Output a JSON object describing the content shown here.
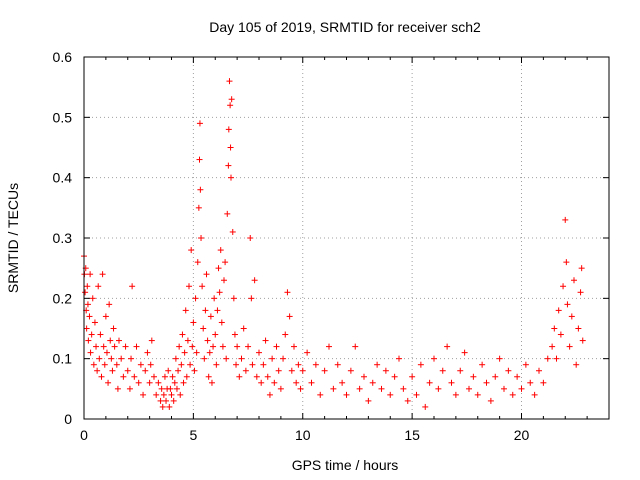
{
  "chart_data": {
    "type": "scatter",
    "title": "Day 105 of 2019, SRMTID for receiver sch2",
    "xlabel": "GPS time / hours",
    "ylabel": "SRMTID / TECUs",
    "xlim": [
      0,
      24
    ],
    "ylim": [
      0,
      0.6
    ],
    "xticks": [
      0,
      5,
      10,
      15,
      20
    ],
    "xtick_labels": [
      "0",
      "5",
      "10",
      "15",
      "20"
    ],
    "yticks": [
      0,
      0.1,
      0.2,
      0.3,
      0.4,
      0.5,
      0.6
    ],
    "ytick_labels": [
      "0",
      "0.1",
      "0.2",
      "0.3",
      "0.4",
      "0.5",
      "0.6"
    ],
    "grid": true,
    "marker": "+",
    "color": "#ff0000",
    "series": [
      {
        "name": "sch2",
        "points": [
          [
            0.0,
            0.27
          ],
          [
            0.02,
            0.24
          ],
          [
            0.05,
            0.21
          ],
          [
            0.08,
            0.25
          ],
          [
            0.1,
            0.18
          ],
          [
            0.12,
            0.15
          ],
          [
            0.15,
            0.22
          ],
          [
            0.18,
            0.19
          ],
          [
            0.2,
            0.13
          ],
          [
            0.25,
            0.17
          ],
          [
            0.28,
            0.24
          ],
          [
            0.3,
            0.11
          ],
          [
            0.35,
            0.14
          ],
          [
            0.4,
            0.2
          ],
          [
            0.45,
            0.09
          ],
          [
            0.5,
            0.16
          ],
          [
            0.55,
            0.12
          ],
          [
            0.6,
            0.08
          ],
          [
            0.65,
            0.22
          ],
          [
            0.7,
            0.1
          ],
          [
            0.75,
            0.14
          ],
          [
            0.8,
            0.07
          ],
          [
            0.85,
            0.24
          ],
          [
            0.9,
            0.12
          ],
          [
            0.95,
            0.09
          ],
          [
            1.0,
            0.17
          ],
          [
            1.05,
            0.11
          ],
          [
            1.1,
            0.06
          ],
          [
            1.15,
            0.19
          ],
          [
            1.2,
            0.13
          ],
          [
            1.25,
            0.1
          ],
          [
            1.3,
            0.08
          ],
          [
            1.35,
            0.15
          ],
          [
            1.4,
            0.12
          ],
          [
            1.5,
            0.09
          ],
          [
            1.55,
            0.05
          ],
          [
            1.6,
            0.13
          ],
          [
            1.7,
            0.1
          ],
          [
            1.8,
            0.07
          ],
          [
            1.9,
            0.12
          ],
          [
            2.0,
            0.08
          ],
          [
            2.1,
            0.05
          ],
          [
            2.15,
            0.1
          ],
          [
            2.2,
            0.22
          ],
          [
            2.3,
            0.07
          ],
          [
            2.4,
            0.12
          ],
          [
            2.5,
            0.06
          ],
          [
            2.6,
            0.09
          ],
          [
            2.7,
            0.04
          ],
          [
            2.8,
            0.08
          ],
          [
            2.9,
            0.11
          ],
          [
            3.0,
            0.06
          ],
          [
            3.05,
            0.09
          ],
          [
            3.1,
            0.13
          ],
          [
            3.2,
            0.07
          ],
          [
            3.3,
            0.04
          ],
          [
            3.4,
            0.06
          ],
          [
            3.5,
            0.03
          ],
          [
            3.55,
            0.05
          ],
          [
            3.6,
            0.02
          ],
          [
            3.65,
            0.04
          ],
          [
            3.7,
            0.07
          ],
          [
            3.75,
            0.03
          ],
          [
            3.8,
            0.05
          ],
          [
            3.85,
            0.08
          ],
          [
            3.9,
            0.02
          ],
          [
            3.95,
            0.05
          ],
          [
            4.0,
            0.04
          ],
          [
            4.05,
            0.07
          ],
          [
            4.1,
            0.03
          ],
          [
            4.15,
            0.06
          ],
          [
            4.2,
            0.1
          ],
          [
            4.25,
            0.05
          ],
          [
            4.3,
            0.08
          ],
          [
            4.35,
            0.12
          ],
          [
            4.4,
            0.04
          ],
          [
            4.45,
            0.09
          ],
          [
            4.5,
            0.14
          ],
          [
            4.55,
            0.06
          ],
          [
            4.6,
            0.11
          ],
          [
            4.65,
            0.18
          ],
          [
            4.7,
            0.07
          ],
          [
            4.75,
            0.13
          ],
          [
            4.8,
            0.22
          ],
          [
            4.85,
            0.09
          ],
          [
            4.9,
            0.28
          ],
          [
            4.95,
            0.12
          ],
          [
            5.0,
            0.16
          ],
          [
            5.05,
            0.08
          ],
          [
            5.1,
            0.2
          ],
          [
            5.15,
            0.11
          ],
          [
            5.2,
            0.26
          ],
          [
            5.25,
            0.35
          ],
          [
            5.28,
            0.43
          ],
          [
            5.3,
            0.49
          ],
          [
            5.32,
            0.38
          ],
          [
            5.35,
            0.3
          ],
          [
            5.4,
            0.22
          ],
          [
            5.45,
            0.15
          ],
          [
            5.5,
            0.1
          ],
          [
            5.55,
            0.18
          ],
          [
            5.6,
            0.24
          ],
          [
            5.65,
            0.13
          ],
          [
            5.7,
            0.07
          ],
          [
            5.75,
            0.11
          ],
          [
            5.8,
            0.17
          ],
          [
            5.85,
            0.06
          ],
          [
            5.9,
            0.12
          ],
          [
            5.95,
            0.2
          ],
          [
            6.0,
            0.14
          ],
          [
            6.05,
            0.09
          ],
          [
            6.1,
            0.18
          ],
          [
            6.15,
            0.25
          ],
          [
            6.2,
            0.21
          ],
          [
            6.25,
            0.28
          ],
          [
            6.3,
            0.16
          ],
          [
            6.35,
            0.12
          ],
          [
            6.4,
            0.23
          ],
          [
            6.45,
            0.26
          ],
          [
            6.5,
            0.1
          ],
          [
            6.55,
            0.34
          ],
          [
            6.6,
            0.42
          ],
          [
            6.62,
            0.48
          ],
          [
            6.65,
            0.56
          ],
          [
            6.68,
            0.52
          ],
          [
            6.7,
            0.45
          ],
          [
            6.72,
            0.4
          ],
          [
            6.75,
            0.53
          ],
          [
            6.8,
            0.31
          ],
          [
            6.85,
            0.2
          ],
          [
            6.9,
            0.14
          ],
          [
            6.95,
            0.09
          ],
          [
            7.0,
            0.12
          ],
          [
            7.1,
            0.07
          ],
          [
            7.2,
            0.1
          ],
          [
            7.3,
            0.15
          ],
          [
            7.4,
            0.08
          ],
          [
            7.5,
            0.12
          ],
          [
            7.6,
            0.3
          ],
          [
            7.65,
            0.2
          ],
          [
            7.7,
            0.09
          ],
          [
            7.8,
            0.23
          ],
          [
            7.9,
            0.07
          ],
          [
            8.0,
            0.11
          ],
          [
            8.1,
            0.06
          ],
          [
            8.2,
            0.09
          ],
          [
            8.3,
            0.13
          ],
          [
            8.4,
            0.07
          ],
          [
            8.5,
            0.04
          ],
          [
            8.6,
            0.1
          ],
          [
            8.7,
            0.06
          ],
          [
            8.8,
            0.12
          ],
          [
            8.9,
            0.08
          ],
          [
            9.0,
            0.05
          ],
          [
            9.1,
            0.1
          ],
          [
            9.2,
            0.14
          ],
          [
            9.3,
            0.21
          ],
          [
            9.4,
            0.17
          ],
          [
            9.5,
            0.08
          ],
          [
            9.6,
            0.12
          ],
          [
            9.7,
            0.06
          ],
          [
            9.8,
            0.09
          ],
          [
            9.9,
            0.05
          ],
          [
            10.0,
            0.08
          ],
          [
            10.2,
            0.11
          ],
          [
            10.4,
            0.06
          ],
          [
            10.6,
            0.09
          ],
          [
            10.8,
            0.04
          ],
          [
            11.0,
            0.08
          ],
          [
            11.2,
            0.12
          ],
          [
            11.4,
            0.05
          ],
          [
            11.6,
            0.09
          ],
          [
            11.8,
            0.06
          ],
          [
            12.0,
            0.04
          ],
          [
            12.2,
            0.08
          ],
          [
            12.4,
            0.12
          ],
          [
            12.6,
            0.05
          ],
          [
            12.8,
            0.07
          ],
          [
            13.0,
            0.03
          ],
          [
            13.2,
            0.06
          ],
          [
            13.4,
            0.09
          ],
          [
            13.6,
            0.05
          ],
          [
            13.8,
            0.08
          ],
          [
            14.0,
            0.04
          ],
          [
            14.2,
            0.07
          ],
          [
            14.4,
            0.1
          ],
          [
            14.6,
            0.05
          ],
          [
            14.8,
            0.03
          ],
          [
            15.0,
            0.07
          ],
          [
            15.2,
            0.04
          ],
          [
            15.4,
            0.09
          ],
          [
            15.6,
            0.02
          ],
          [
            15.8,
            0.06
          ],
          [
            16.0,
            0.1
          ],
          [
            16.2,
            0.05
          ],
          [
            16.4,
            0.08
          ],
          [
            16.6,
            0.12
          ],
          [
            16.8,
            0.06
          ],
          [
            17.0,
            0.04
          ],
          [
            17.2,
            0.08
          ],
          [
            17.4,
            0.11
          ],
          [
            17.6,
            0.05
          ],
          [
            17.8,
            0.07
          ],
          [
            18.0,
            0.04
          ],
          [
            18.2,
            0.09
          ],
          [
            18.4,
            0.06
          ],
          [
            18.6,
            0.03
          ],
          [
            18.8,
            0.07
          ],
          [
            19.0,
            0.1
          ],
          [
            19.2,
            0.05
          ],
          [
            19.4,
            0.08
          ],
          [
            19.6,
            0.04
          ],
          [
            19.8,
            0.07
          ],
          [
            20.0,
            0.05
          ],
          [
            20.2,
            0.09
          ],
          [
            20.4,
            0.06
          ],
          [
            20.6,
            0.04
          ],
          [
            20.8,
            0.08
          ],
          [
            21.0,
            0.06
          ],
          [
            21.2,
            0.1
          ],
          [
            21.4,
            0.12
          ],
          [
            21.5,
            0.15
          ],
          [
            21.6,
            0.1
          ],
          [
            21.7,
            0.18
          ],
          [
            21.8,
            0.14
          ],
          [
            21.9,
            0.22
          ],
          [
            22.0,
            0.33
          ],
          [
            22.05,
            0.26
          ],
          [
            22.1,
            0.19
          ],
          [
            22.2,
            0.12
          ],
          [
            22.3,
            0.17
          ],
          [
            22.4,
            0.23
          ],
          [
            22.5,
            0.09
          ],
          [
            22.6,
            0.15
          ],
          [
            22.7,
            0.21
          ],
          [
            22.75,
            0.25
          ],
          [
            22.8,
            0.13
          ]
        ]
      }
    ]
  }
}
